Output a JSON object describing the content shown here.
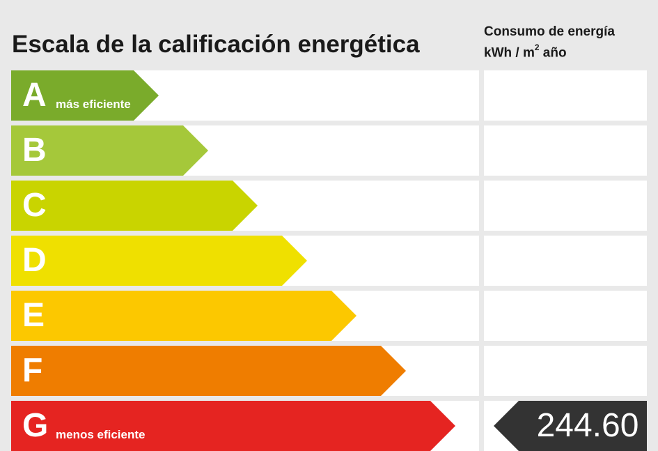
{
  "title": "Escala de la calificación energética",
  "unit_header": {
    "line1": "Consumo de energía",
    "line2_prefix": "kWh / m",
    "line2_sup": "2",
    "line2_suffix": " año"
  },
  "ratings": [
    {
      "letter": "A",
      "sublabel": "más eficiente",
      "color": "#7aab2b",
      "fraction": 0.316
    },
    {
      "letter": "B",
      "sublabel": "",
      "color": "#a5c83a",
      "fraction": 0.421
    },
    {
      "letter": "C",
      "sublabel": "",
      "color": "#c9d400",
      "fraction": 0.527
    },
    {
      "letter": "D",
      "sublabel": "",
      "color": "#efe000",
      "fraction": 0.632
    },
    {
      "letter": "E",
      "sublabel": "",
      "color": "#fcc800",
      "fraction": 0.738
    },
    {
      "letter": "F",
      "sublabel": "",
      "color": "#ef7d00",
      "fraction": 0.844
    },
    {
      "letter": "G",
      "sublabel": "menos eficiente",
      "color": "#e52421",
      "fraction": 0.95
    }
  ],
  "current": {
    "rating": "G",
    "value": "244.60",
    "badge_color": "#333333"
  }
}
